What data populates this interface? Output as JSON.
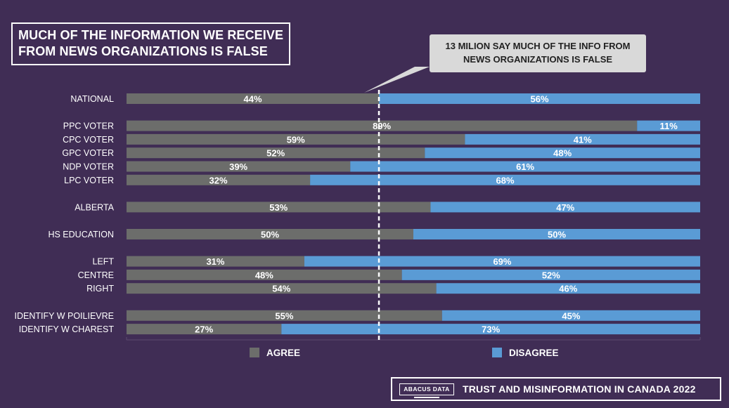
{
  "title": {
    "line1": "MUCH OF THE INFORMATION WE RECEIVE",
    "line2": "FROM NEWS ORGANIZATIONS IS FALSE"
  },
  "callout": {
    "line1": "13 MILION SAY MUCH OF THE INFO FROM",
    "line2": "NEWS ORGANIZATIONS IS FALSE"
  },
  "footer": {
    "logo": "ABACUS DATA",
    "text": "TRUST AND MISINFORMATION IN CANADA 2022"
  },
  "colors": {
    "background": "#402d55",
    "agree": "#6c6d6b",
    "disagree": "#5a9bd5",
    "text": "#ffffff"
  },
  "chart_data": {
    "type": "bar",
    "orientation": "horizontal",
    "stacked": true,
    "title": "MUCH OF THE INFORMATION WE RECEIVE FROM NEWS ORGANIZATIONS IS FALSE",
    "categories": [
      "NATIONAL",
      "PPC VOTER",
      "CPC VOTER",
      "GPC VOTER",
      "NDP VOTER",
      "LPC VOTER",
      "ALBERTA",
      "HS EDUCATION",
      "LEFT",
      "CENTRE",
      "RIGHT",
      "IDENTIFY W POILIEVRE",
      "IDENTIFY W CHAREST"
    ],
    "groups": [
      [
        0
      ],
      [
        1,
        2,
        3,
        4,
        5
      ],
      [
        6
      ],
      [
        7
      ],
      [
        8,
        9,
        10
      ],
      [
        11,
        12
      ]
    ],
    "series": [
      {
        "name": "AGREE",
        "values": [
          44,
          89,
          59,
          52,
          39,
          32,
          53,
          50,
          31,
          48,
          54,
          55,
          27
        ]
      },
      {
        "name": "DISAGREE",
        "values": [
          56,
          11,
          41,
          48,
          61,
          68,
          47,
          50,
          69,
          52,
          46,
          45,
          73
        ]
      }
    ],
    "value_suffix": "%",
    "reference_line": 44,
    "xlim": [
      0,
      100
    ],
    "legend": [
      "AGREE",
      "DISAGREE"
    ],
    "legend_position": "bottom"
  }
}
